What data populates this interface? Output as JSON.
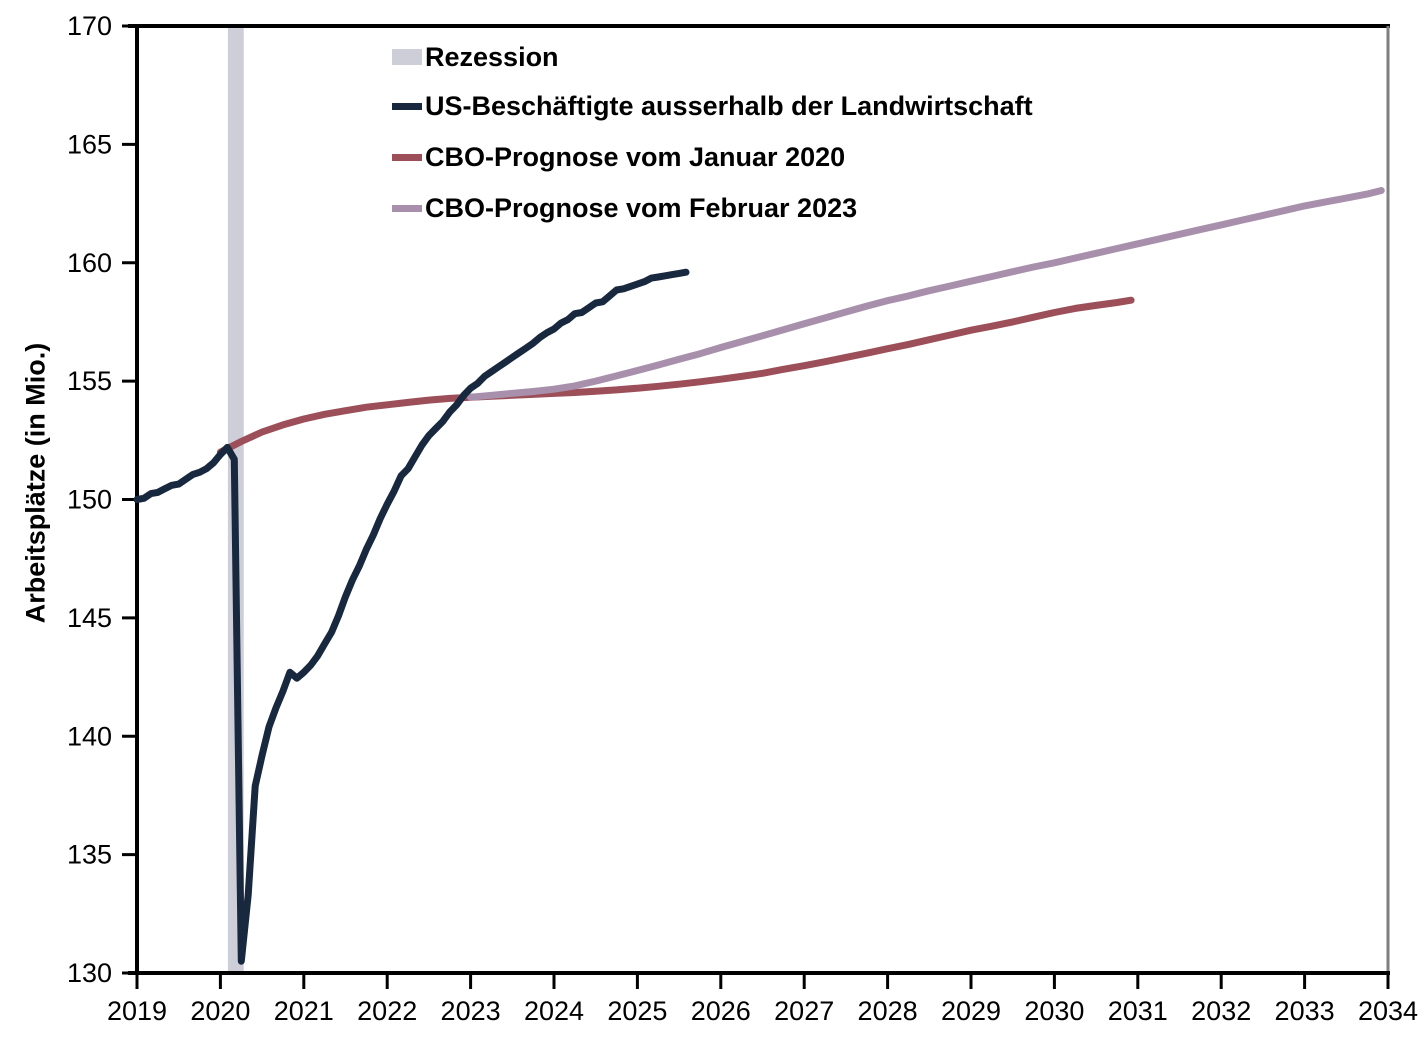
{
  "chart_data": {
    "type": "line",
    "title": "",
    "xlabel": "",
    "ylabel": "Arbeitsplätze (in Mio.)",
    "xlim": [
      2019,
      2034
    ],
    "ylim": [
      130,
      170
    ],
    "x_ticks": [
      2019,
      2020,
      2021,
      2022,
      2023,
      2024,
      2025,
      2026,
      2027,
      2028,
      2029,
      2030,
      2031,
      2032,
      2033,
      2034
    ],
    "y_ticks": [
      130,
      135,
      140,
      145,
      150,
      155,
      160,
      165,
      170
    ],
    "grid": false,
    "legend_position": "top-left-inside",
    "frame": {
      "axis_color": "#000000",
      "right_border_color": "#7f7f7f",
      "background": "#ffffff"
    },
    "recession_band": {
      "label": "Rezession",
      "x_start": 2020.09,
      "x_end": 2020.28,
      "color": "#cdced8"
    },
    "series": [
      {
        "name": "US-Beschäftigte ausserhalb der Landwirtschaft",
        "color": "#18293f",
        "line_width": 7,
        "draw_order": 3,
        "points": [
          [
            2019.0,
            150.0
          ],
          [
            2019.083,
            150.05
          ],
          [
            2019.167,
            150.25
          ],
          [
            2019.25,
            150.3
          ],
          [
            2019.333,
            150.45
          ],
          [
            2019.417,
            150.6
          ],
          [
            2019.5,
            150.65
          ],
          [
            2019.583,
            150.85
          ],
          [
            2019.667,
            151.05
          ],
          [
            2019.75,
            151.15
          ],
          [
            2019.833,
            151.3
          ],
          [
            2019.917,
            151.55
          ],
          [
            2020.0,
            151.9
          ],
          [
            2020.083,
            152.2
          ],
          [
            2020.167,
            151.7
          ],
          [
            2020.25,
            130.5
          ],
          [
            2020.333,
            133.3
          ],
          [
            2020.417,
            137.9
          ],
          [
            2020.5,
            139.2
          ],
          [
            2020.583,
            140.4
          ],
          [
            2020.667,
            141.2
          ],
          [
            2020.75,
            141.9
          ],
          [
            2020.833,
            142.7
          ],
          [
            2020.917,
            142.45
          ],
          [
            2021.0,
            142.7
          ],
          [
            2021.083,
            143.0
          ],
          [
            2021.167,
            143.4
          ],
          [
            2021.25,
            143.9
          ],
          [
            2021.333,
            144.4
          ],
          [
            2021.417,
            145.1
          ],
          [
            2021.5,
            145.9
          ],
          [
            2021.583,
            146.6
          ],
          [
            2021.667,
            147.2
          ],
          [
            2021.75,
            147.9
          ],
          [
            2021.833,
            148.5
          ],
          [
            2021.917,
            149.2
          ],
          [
            2022.0,
            149.8
          ],
          [
            2022.083,
            150.35
          ],
          [
            2022.167,
            151.0
          ],
          [
            2022.25,
            151.3
          ],
          [
            2022.333,
            151.8
          ],
          [
            2022.417,
            152.3
          ],
          [
            2022.5,
            152.7
          ],
          [
            2022.583,
            153.0
          ],
          [
            2022.667,
            153.3
          ],
          [
            2022.75,
            153.7
          ],
          [
            2022.833,
            154.0
          ],
          [
            2022.917,
            154.4
          ],
          [
            2023.0,
            154.7
          ],
          [
            2023.083,
            154.9
          ],
          [
            2023.167,
            155.2
          ],
          [
            2023.25,
            155.4
          ],
          [
            2023.333,
            155.6
          ],
          [
            2023.417,
            155.8
          ],
          [
            2023.5,
            156.0
          ],
          [
            2023.583,
            156.2
          ],
          [
            2023.667,
            156.4
          ],
          [
            2023.75,
            156.6
          ],
          [
            2023.833,
            156.85
          ],
          [
            2023.917,
            157.05
          ],
          [
            2024.0,
            157.2
          ],
          [
            2024.083,
            157.45
          ],
          [
            2024.167,
            157.6
          ],
          [
            2024.25,
            157.85
          ],
          [
            2024.333,
            157.9
          ],
          [
            2024.417,
            158.1
          ],
          [
            2024.5,
            158.3
          ],
          [
            2024.583,
            158.35
          ],
          [
            2024.667,
            158.6
          ],
          [
            2024.75,
            158.85
          ],
          [
            2024.833,
            158.9
          ],
          [
            2024.917,
            159.0
          ],
          [
            2025.0,
            159.1
          ],
          [
            2025.083,
            159.2
          ],
          [
            2025.167,
            159.35
          ],
          [
            2025.25,
            159.4
          ],
          [
            2025.333,
            159.45
          ],
          [
            2025.417,
            159.5
          ],
          [
            2025.5,
            159.55
          ],
          [
            2025.583,
            159.6
          ]
        ]
      },
      {
        "name": "CBO-Prognose vom Januar 2020",
        "color": "#9c4f58",
        "line_width": 7,
        "draw_order": 1,
        "points": [
          [
            2020.0,
            152.0
          ],
          [
            2020.25,
            152.45
          ],
          [
            2020.5,
            152.85
          ],
          [
            2020.75,
            153.15
          ],
          [
            2021.0,
            153.4
          ],
          [
            2021.25,
            153.6
          ],
          [
            2021.5,
            153.75
          ],
          [
            2021.75,
            153.9
          ],
          [
            2022.0,
            154.0
          ],
          [
            2022.25,
            154.1
          ],
          [
            2022.5,
            154.2
          ],
          [
            2022.75,
            154.27
          ],
          [
            2023.0,
            154.32
          ],
          [
            2023.25,
            154.36
          ],
          [
            2023.5,
            154.4
          ],
          [
            2023.75,
            154.44
          ],
          [
            2024.0,
            154.48
          ],
          [
            2024.25,
            154.52
          ],
          [
            2024.5,
            154.57
          ],
          [
            2024.75,
            154.63
          ],
          [
            2025.0,
            154.7
          ],
          [
            2025.25,
            154.78
          ],
          [
            2025.5,
            154.87
          ],
          [
            2025.75,
            154.97
          ],
          [
            2026.0,
            155.08
          ],
          [
            2026.25,
            155.2
          ],
          [
            2026.5,
            155.33
          ],
          [
            2026.75,
            155.5
          ],
          [
            2027.0,
            155.65
          ],
          [
            2027.25,
            155.82
          ],
          [
            2027.5,
            156.0
          ],
          [
            2027.75,
            156.18
          ],
          [
            2028.0,
            156.37
          ],
          [
            2028.25,
            156.55
          ],
          [
            2028.5,
            156.75
          ],
          [
            2028.75,
            156.95
          ],
          [
            2029.0,
            157.15
          ],
          [
            2029.25,
            157.32
          ],
          [
            2029.5,
            157.5
          ],
          [
            2029.75,
            157.7
          ],
          [
            2030.0,
            157.9
          ],
          [
            2030.25,
            158.07
          ],
          [
            2030.5,
            158.2
          ],
          [
            2030.75,
            158.32
          ],
          [
            2030.92,
            158.42
          ]
        ]
      },
      {
        "name": "CBO-Prognose vom Februar 2023",
        "color": "#a890ad",
        "line_width": 7,
        "draw_order": 2,
        "points": [
          [
            2023.0,
            154.32
          ],
          [
            2023.25,
            154.4
          ],
          [
            2023.5,
            154.48
          ],
          [
            2023.75,
            154.56
          ],
          [
            2024.0,
            154.66
          ],
          [
            2024.25,
            154.8
          ],
          [
            2024.5,
            155.0
          ],
          [
            2024.75,
            155.22
          ],
          [
            2025.0,
            155.45
          ],
          [
            2025.25,
            155.68
          ],
          [
            2025.5,
            155.92
          ],
          [
            2025.75,
            156.16
          ],
          [
            2026.0,
            156.42
          ],
          [
            2026.25,
            156.67
          ],
          [
            2026.5,
            156.92
          ],
          [
            2026.75,
            157.17
          ],
          [
            2027.0,
            157.42
          ],
          [
            2027.25,
            157.67
          ],
          [
            2027.5,
            157.92
          ],
          [
            2027.75,
            158.17
          ],
          [
            2028.0,
            158.4
          ],
          [
            2028.25,
            158.6
          ],
          [
            2028.5,
            158.82
          ],
          [
            2028.75,
            159.02
          ],
          [
            2029.0,
            159.22
          ],
          [
            2029.25,
            159.42
          ],
          [
            2029.5,
            159.62
          ],
          [
            2029.75,
            159.82
          ],
          [
            2030.0,
            160.0
          ],
          [
            2030.25,
            160.2
          ],
          [
            2030.5,
            160.4
          ],
          [
            2030.75,
            160.6
          ],
          [
            2031.0,
            160.8
          ],
          [
            2031.25,
            161.0
          ],
          [
            2031.5,
            161.2
          ],
          [
            2031.75,
            161.4
          ],
          [
            2032.0,
            161.6
          ],
          [
            2032.25,
            161.8
          ],
          [
            2032.5,
            162.0
          ],
          [
            2032.75,
            162.2
          ],
          [
            2033.0,
            162.4
          ],
          [
            2033.25,
            162.57
          ],
          [
            2033.5,
            162.73
          ],
          [
            2033.75,
            162.9
          ],
          [
            2033.92,
            163.05
          ]
        ]
      }
    ]
  },
  "legend": {
    "rows": [
      {
        "kind": "band",
        "label_path": "recession_band"
      },
      {
        "kind": "line",
        "series_index": 0
      },
      {
        "kind": "line",
        "series_index": 1
      },
      {
        "kind": "line",
        "series_index": 2
      }
    ]
  }
}
